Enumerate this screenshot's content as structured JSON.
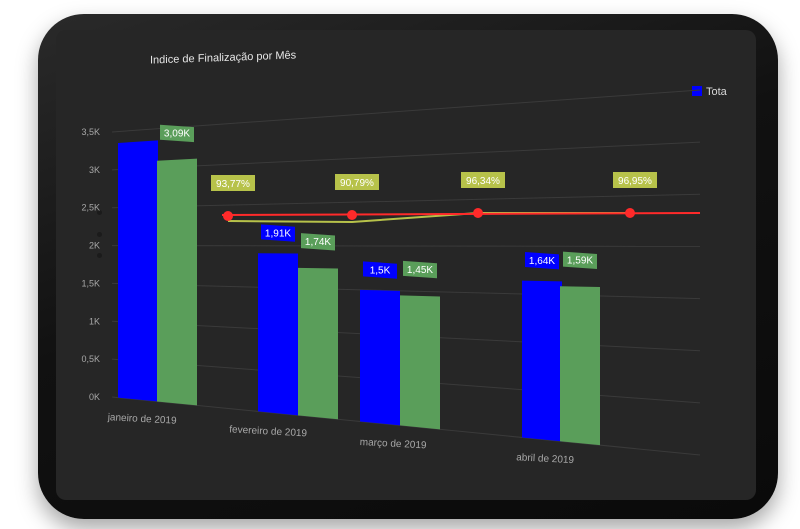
{
  "chart_title": "Indice de Finalização por Mês",
  "legend": {
    "label": "Tota",
    "color": "#0000ff"
  },
  "colors": {
    "series1": "#0000ff",
    "series2": "#5a9e5a",
    "line": "#ff2a2a",
    "target": "#b7c24a",
    "axis_text": "#a8a8a8",
    "label_text": "#ffffff"
  },
  "chart_data": {
    "type": "bar",
    "categories": [
      "janeiro de 2019",
      "fevereiro de 2019",
      "março de 2019",
      "abril de 2019"
    ],
    "series": [
      {
        "values": [
          3.35,
          1.91,
          1.5,
          1.64
        ],
        "labels": [
          "",
          "1,91K",
          "1,5K",
          "1,64K"
        ]
      },
      {
        "values": [
          3.09,
          1.74,
          1.45,
          1.59
        ],
        "labels": [
          "3,09K",
          "1,74K",
          "1,45K",
          "1,59K"
        ]
      }
    ],
    "line": {
      "values": [
        93.77,
        90.79,
        96.34,
        96.95
      ],
      "labels": [
        "93,77%",
        "90,79%",
        "96,34%",
        "96,95%"
      ]
    },
    "y_ticks": [
      "0K",
      "0,5K",
      "1K",
      "1,5K",
      "2K",
      "2,5K",
      "3K",
      "3,5K"
    ],
    "ylim": [
      0,
      3.5
    ],
    "grid": true
  }
}
